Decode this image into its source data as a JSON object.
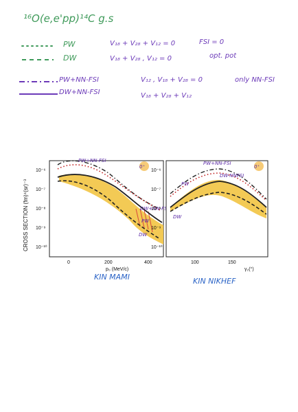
{
  "header": {
    "title": "¹⁶O(e,e'pp)¹⁴C g.s"
  },
  "legend": [
    {
      "style": "dotted",
      "color": "#3f9a5a",
      "label": "PW",
      "eq": "V₁₈ + V₂₈ + V₁₂ = 0",
      "note": "FSI = 0"
    },
    {
      "style": "dashed",
      "color": "#3f9a5a",
      "label": "DW",
      "eq": "V₁₈ + V₂₈ ,   V₁₂ = 0",
      "note": "opt. pot"
    },
    {
      "style": "dashdot",
      "color": "#6b39b8",
      "label": "PW+NN-FSI",
      "eq": "V₁₂  ,  V₁₈ + V₂₈ = 0",
      "note": "only NN-FSI"
    },
    {
      "style": "solid",
      "color": "#6b39b8",
      "label": "DW+NN-FSI",
      "eq": "V₁₈ + V₂₈ + V₁₂",
      "note": ""
    }
  ],
  "figure": {
    "ylabel": "CROSS SECTION (fm)⁴(sr)⁻³",
    "left": {
      "xlabel": "p₀ (MeV/c)",
      "xticks": [
        "0",
        "200",
        "400"
      ],
      "yticks": [
        "10⁻⁶",
        "10⁻⁷",
        "10⁻⁸",
        "10⁻⁹",
        "10⁻¹⁰"
      ],
      "badge": "0⁺",
      "ann_top": "PW+NN-FSI",
      "ann_a": "DW+NN-FSI",
      "ann_b": "PW",
      "ann_c": "DW"
    },
    "right": {
      "xlabel": "γ₂(°)",
      "xticks": [
        "100",
        "150"
      ],
      "yticks": [
        "10⁻⁶",
        "10⁻⁷",
        "10⁻⁸",
        "10⁻⁹",
        "10⁻¹⁰"
      ],
      "badge": "0⁺",
      "ann_top": "PW+NN-FSI",
      "ann_a": "PW",
      "ann_b": "DW-NNFSI",
      "ann_c": "DW"
    }
  },
  "captions": {
    "left": "KIN MAMI",
    "right": "KIN NIKHEF"
  }
}
